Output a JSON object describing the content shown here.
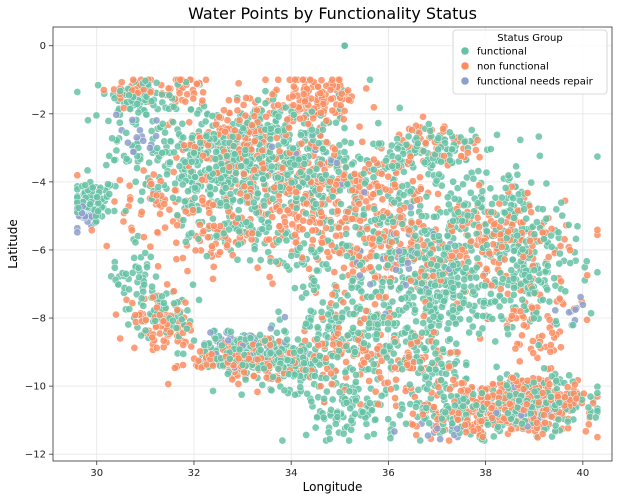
{
  "chart_data": {
    "type": "scatter",
    "title": "Water Points by Functionality Status",
    "xlabel": "Longitude",
    "ylabel": "Latitude",
    "xlim": [
      29.1,
      40.6
    ],
    "ylim": [
      -12.2,
      0.55
    ],
    "xticks": [
      30,
      32,
      34,
      36,
      38,
      40
    ],
    "yticks": [
      0,
      -2,
      -4,
      -6,
      -8,
      -10,
      -12
    ],
    "grid": true,
    "legend": {
      "title": "Status Group",
      "placement": "top-right",
      "entries": [
        "functional",
        "non functional",
        "functional needs repair"
      ]
    },
    "series": [
      {
        "name": "functional",
        "color": "#66c2a5",
        "clusters": [
          {
            "x": 29.9,
            "y": -4.6,
            "sx": 0.25,
            "sy": 0.35,
            "n": 80
          },
          {
            "x": 30.8,
            "y": -1.5,
            "sx": 0.3,
            "sy": 0.3,
            "n": 70
          },
          {
            "x": 31.3,
            "y": -3.0,
            "sx": 0.6,
            "sy": 0.8,
            "n": 120
          },
          {
            "x": 30.8,
            "y": -6.8,
            "sx": 0.2,
            "sy": 0.6,
            "n": 40
          },
          {
            "x": 31.4,
            "y": -7.8,
            "sx": 0.3,
            "sy": 0.4,
            "n": 60
          },
          {
            "x": 32.3,
            "y": -4.0,
            "sx": 0.5,
            "sy": 0.7,
            "n": 140
          },
          {
            "x": 33.2,
            "y": -3.2,
            "sx": 0.6,
            "sy": 0.8,
            "n": 220
          },
          {
            "x": 34.3,
            "y": -3.5,
            "sx": 0.8,
            "sy": 0.9,
            "n": 220
          },
          {
            "x": 33.0,
            "y": -5.4,
            "sx": 0.4,
            "sy": 0.5,
            "n": 60
          },
          {
            "x": 33.0,
            "y": -9.0,
            "sx": 0.5,
            "sy": 0.3,
            "n": 150
          },
          {
            "x": 34.0,
            "y": -9.3,
            "sx": 0.5,
            "sy": 0.4,
            "n": 140
          },
          {
            "x": 35.3,
            "y": -8.3,
            "sx": 0.7,
            "sy": 0.8,
            "n": 200
          },
          {
            "x": 35.3,
            "y": -10.7,
            "sx": 0.5,
            "sy": 0.5,
            "n": 100
          },
          {
            "x": 36.3,
            "y": -5.5,
            "sx": 0.8,
            "sy": 0.9,
            "n": 220
          },
          {
            "x": 36.8,
            "y": -3.2,
            "sx": 0.5,
            "sy": 0.5,
            "n": 120
          },
          {
            "x": 37.2,
            "y": -7.3,
            "sx": 0.7,
            "sy": 0.6,
            "n": 180
          },
          {
            "x": 37.4,
            "y": -10.7,
            "sx": 0.5,
            "sy": 0.4,
            "n": 90
          },
          {
            "x": 38.3,
            "y": -5.0,
            "sx": 0.6,
            "sy": 0.8,
            "n": 140
          },
          {
            "x": 38.9,
            "y": -6.8,
            "sx": 0.5,
            "sy": 0.8,
            "n": 140
          },
          {
            "x": 39.0,
            "y": -10.5,
            "sx": 0.7,
            "sy": 0.4,
            "n": 200
          },
          {
            "x": 37.0,
            "y": -9.0,
            "sx": 0.5,
            "sy": 0.6,
            "n": 80
          },
          {
            "x": 34.3,
            "y": -6.3,
            "sx": 0.4,
            "sy": 0.4,
            "n": 40
          }
        ]
      },
      {
        "name": "non functional",
        "color": "#fc8d62",
        "clusters": [
          {
            "x": 30.8,
            "y": -1.3,
            "sx": 0.3,
            "sy": 0.2,
            "n": 30
          },
          {
            "x": 31.7,
            "y": -1.3,
            "sx": 0.3,
            "sy": 0.2,
            "n": 30
          },
          {
            "x": 31.4,
            "y": -4.8,
            "sx": 0.6,
            "sy": 0.6,
            "n": 60
          },
          {
            "x": 31.3,
            "y": -8.2,
            "sx": 0.4,
            "sy": 0.4,
            "n": 70
          },
          {
            "x": 32.8,
            "y": -2.8,
            "sx": 0.5,
            "sy": 0.5,
            "n": 100
          },
          {
            "x": 34.4,
            "y": -1.6,
            "sx": 0.5,
            "sy": 0.4,
            "n": 140
          },
          {
            "x": 33.6,
            "y": -4.0,
            "sx": 0.8,
            "sy": 0.8,
            "n": 150
          },
          {
            "x": 32.9,
            "y": -9.2,
            "sx": 0.6,
            "sy": 0.3,
            "n": 130
          },
          {
            "x": 34.2,
            "y": -5.2,
            "sx": 0.5,
            "sy": 0.6,
            "n": 70
          },
          {
            "x": 35.5,
            "y": -4.0,
            "sx": 0.6,
            "sy": 0.6,
            "n": 90
          },
          {
            "x": 36.0,
            "y": -6.0,
            "sx": 0.9,
            "sy": 0.8,
            "n": 180
          },
          {
            "x": 38.3,
            "y": -5.8,
            "sx": 0.7,
            "sy": 0.7,
            "n": 130
          },
          {
            "x": 37.0,
            "y": -2.9,
            "sx": 0.5,
            "sy": 0.3,
            "n": 50
          },
          {
            "x": 38.8,
            "y": -10.5,
            "sx": 0.7,
            "sy": 0.4,
            "n": 260
          },
          {
            "x": 35.2,
            "y": -8.8,
            "sx": 0.6,
            "sy": 0.6,
            "n": 90
          },
          {
            "x": 36.6,
            "y": -9.5,
            "sx": 0.6,
            "sy": 0.6,
            "n": 70
          },
          {
            "x": 39.1,
            "y": -8.2,
            "sx": 0.4,
            "sy": 0.6,
            "n": 60
          },
          {
            "x": 37.5,
            "y": -11.0,
            "sx": 0.6,
            "sy": 0.3,
            "n": 60
          },
          {
            "x": 32.4,
            "y": -5.8,
            "sx": 0.5,
            "sy": 0.4,
            "n": 40
          }
        ]
      },
      {
        "name": "functional needs repair",
        "color": "#8da0cb",
        "clusters": [
          {
            "x": 29.8,
            "y": -4.9,
            "sx": 0.15,
            "sy": 0.25,
            "n": 25
          },
          {
            "x": 30.8,
            "y": -2.6,
            "sx": 0.25,
            "sy": 0.3,
            "n": 15
          },
          {
            "x": 33.2,
            "y": -8.8,
            "sx": 0.5,
            "sy": 0.3,
            "n": 35
          },
          {
            "x": 36.0,
            "y": -6.2,
            "sx": 0.6,
            "sy": 0.6,
            "n": 30
          },
          {
            "x": 38.8,
            "y": -10.7,
            "sx": 0.5,
            "sy": 0.3,
            "n": 25
          },
          {
            "x": 39.7,
            "y": -7.9,
            "sx": 0.15,
            "sy": 0.2,
            "n": 10
          },
          {
            "x": 37.0,
            "y": -11.3,
            "sx": 0.3,
            "sy": 0.15,
            "n": 12
          },
          {
            "x": 34.5,
            "y": -3.5,
            "sx": 0.6,
            "sy": 0.6,
            "n": 15
          }
        ]
      }
    ],
    "outliers": [
      {
        "series": "functional",
        "x": 35.1,
        "y": 0.0
      }
    ]
  }
}
